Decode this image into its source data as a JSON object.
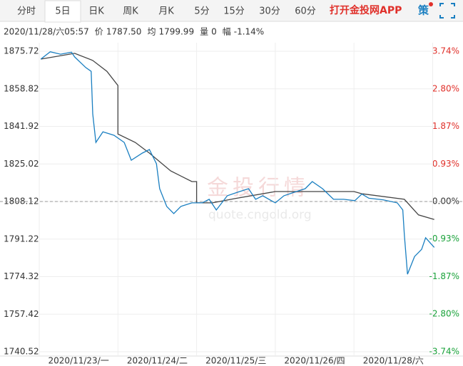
{
  "tabs": [
    "分时",
    "5日",
    "日K",
    "周K",
    "月K",
    "5分",
    "15分",
    "30分",
    "60分"
  ],
  "selected_tab": 1,
  "app_link": "打开金投网APP",
  "strategy_icon": "策",
  "info": {
    "time": "2020/11/28/六05:57",
    "fields": [
      {
        "label": "价",
        "value": "1787.50"
      },
      {
        "label": "均",
        "value": "1799.99"
      },
      {
        "label": "量",
        "value": "0"
      },
      {
        "label": "幅",
        "value": "-1.14%"
      }
    ]
  },
  "watermark": {
    "title": "金投行情",
    "url": "quote.cngold.org"
  },
  "chart_data": {
    "type": "line",
    "xlim": [
      0,
      5.05
    ],
    "xticks": [
      {
        "value": 0.5,
        "label": "2020/11/23/一"
      },
      {
        "value": 1.5,
        "label": "2020/11/24/二"
      },
      {
        "value": 2.5,
        "label": "2020/11/25/三"
      },
      {
        "value": 3.5,
        "label": "2020/11/26/四"
      },
      {
        "value": 4.5,
        "label": "2020/11/28/六"
      }
    ],
    "ylim": [
      1740.52,
      1875.72
    ],
    "yticks": [
      1875.72,
      1858.82,
      1841.92,
      1825.02,
      1808.12,
      1791.22,
      1774.32,
      1757.42,
      1740.52
    ],
    "y2lim": [
      -3.74,
      3.74
    ],
    "y2ticks": [
      {
        "value": 3.74,
        "label": "3.74%"
      },
      {
        "value": 2.8,
        "label": "2.80%"
      },
      {
        "value": 1.87,
        "label": "1.87%"
      },
      {
        "value": 0.93,
        "label": "0.93%"
      },
      {
        "value": 0,
        "label": "0.00%"
      },
      {
        "value": -0.93,
        "label": "-0.93%"
      },
      {
        "value": -1.87,
        "label": "-1.87%"
      },
      {
        "value": -2.8,
        "label": "-2.80%"
      },
      {
        "value": -3.74,
        "label": "-3.74%"
      }
    ],
    "grid": true,
    "series": [
      {
        "color": "#1a7fc1",
        "x": [
          0.02,
          0.14,
          0.27,
          0.41,
          0.45,
          0.59,
          0.66,
          0.68,
          0.72,
          0.81,
          0.95,
          1.08,
          1.17,
          1.31,
          1.4,
          1.49,
          1.53,
          1.62,
          1.71,
          1.8,
          1.94,
          2.07,
          2.16,
          2.25,
          2.39,
          2.52,
          2.66,
          2.75,
          2.84,
          3.0,
          3.11,
          3.24,
          3.38,
          3.47,
          3.6,
          3.74,
          3.87,
          4.01,
          4.1,
          4.19,
          4.37,
          4.55,
          4.62,
          4.64,
          4.68,
          4.77,
          4.86,
          4.91,
          5.02
        ],
        "values": [
          1872.2,
          1875.5,
          1874.4,
          1875.3,
          1873.2,
          1868.4,
          1866.7,
          1847.5,
          1834.7,
          1839.5,
          1837.9,
          1834.7,
          1826.7,
          1829.9,
          1831.5,
          1825.1,
          1813.9,
          1805.9,
          1802.7,
          1805.9,
          1807.5,
          1807.5,
          1809.1,
          1804.3,
          1810.7,
          1812.3,
          1813.9,
          1809.1,
          1810.7,
          1807.5,
          1810.7,
          1812.3,
          1813.9,
          1817.1,
          1813.9,
          1809.1,
          1809.1,
          1808.5,
          1811.5,
          1809.6,
          1808.9,
          1807.5,
          1804.3,
          1793.1,
          1775.4,
          1783.4,
          1786.6,
          1791.8,
          1787.5
        ]
      },
      {
        "color": "#444444",
        "x": [
          0.02,
          0.45,
          0.68,
          0.86,
          1.0,
          1.0,
          1.22,
          1.4,
          1.67,
          1.94,
          2.0,
          2.0,
          2.2,
          2.48,
          3.0,
          3.5,
          4.0,
          4.1,
          4.64,
          4.82,
          5.02
        ],
        "values": [
          1872.2,
          1874.8,
          1871.6,
          1866.7,
          1860.3,
          1838.5,
          1834.7,
          1829.9,
          1821.9,
          1817.1,
          1817.1,
          1807.5,
          1807.5,
          1809.4,
          1812.6,
          1812.6,
          1812.6,
          1811.6,
          1809.1,
          1802.1,
          1800.0
        ]
      }
    ]
  }
}
